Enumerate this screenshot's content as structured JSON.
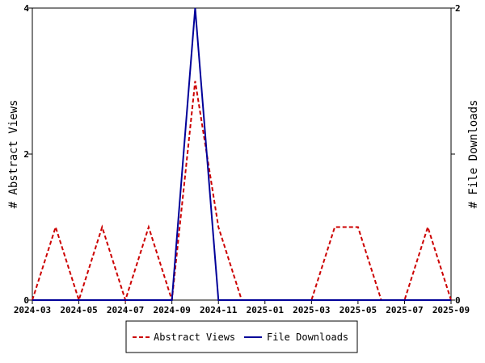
{
  "chart_data": {
    "type": "line",
    "title": "",
    "xlabel": "",
    "x": [
      "2024-03",
      "2024-04",
      "2024-05",
      "2024-06",
      "2024-07",
      "2024-08",
      "2024-09",
      "2024-10",
      "2024-11",
      "2024-12",
      "2025-01",
      "2025-02",
      "2025-03",
      "2025-04",
      "2025-05",
      "2025-06",
      "2025-07",
      "2025-08",
      "2025-09"
    ],
    "x_tick_labels": [
      "2024-03",
      "2024-05",
      "2024-07",
      "2024-09",
      "2024-11",
      "2025-01",
      "2025-03",
      "2025-05",
      "2025-07",
      "2025-09"
    ],
    "series": [
      {
        "name": "Abstract Views",
        "axis": "left",
        "color": "#cc0000",
        "style": "dashed",
        "values": [
          0,
          1,
          0,
          1,
          0,
          1,
          0,
          3,
          1,
          0,
          0,
          0,
          0,
          1,
          1,
          0,
          0,
          1,
          0
        ]
      },
      {
        "name": "File Downloads",
        "axis": "right",
        "color": "#000099",
        "style": "solid",
        "values": [
          0,
          0,
          0,
          0,
          0,
          0,
          0,
          2,
          0,
          0,
          0,
          0,
          0,
          0,
          0,
          0,
          0,
          0,
          0
        ]
      }
    ],
    "y_left": {
      "label": "# Abstract Views",
      "range": [
        0,
        4
      ],
      "ticks": [
        "0",
        "2",
        "4"
      ]
    },
    "y_right": {
      "label": "# File Downloads",
      "range": [
        0,
        2
      ],
      "ticks": [
        "0",
        "1",
        "2"
      ]
    },
    "grid": false,
    "legend_position": "bottom"
  }
}
